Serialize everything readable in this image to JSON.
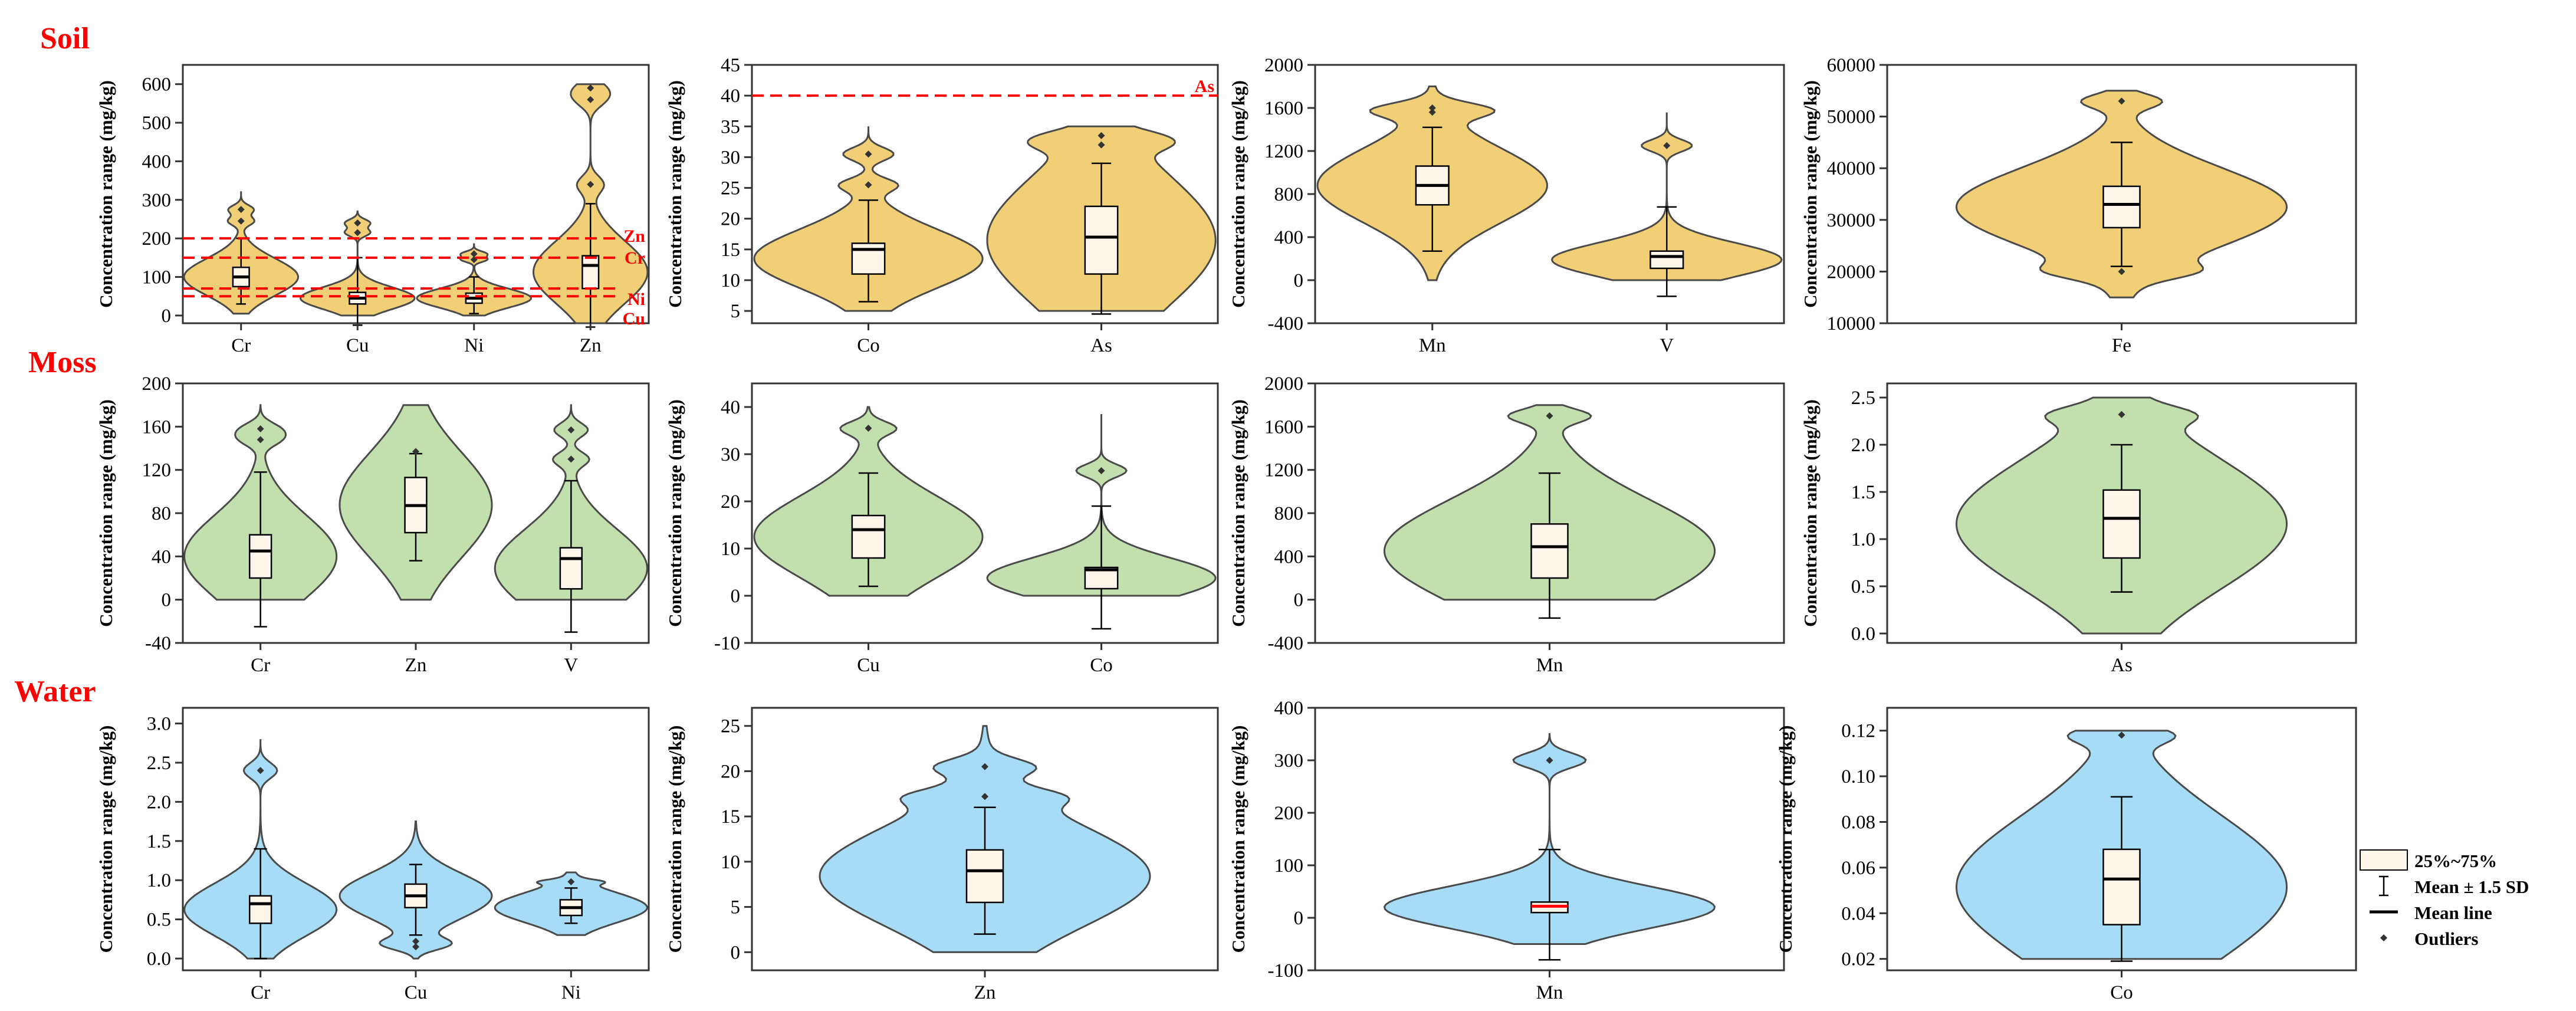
{
  "colors": {
    "Soil": "#f0cf77",
    "Moss": "#c2dfae",
    "Water": "#a6dcf5",
    "box": "#fdf6ea",
    "ref": "#ff0000",
    "frame": "#333333"
  },
  "rows": [
    {
      "label": "Soil",
      "key": "Soil"
    },
    {
      "label": "Moss",
      "key": "Moss"
    },
    {
      "label": "Water",
      "key": "Water"
    }
  ],
  "legend": [
    {
      "label": "25%~75%",
      "icon": "box-icon"
    },
    {
      "label": "Mean ± 1.5 SD",
      "icon": "whisker-icon"
    },
    {
      "label": "Mean line",
      "icon": "mean-line-icon"
    },
    {
      "label": "Outliers",
      "icon": "outlier-icon"
    }
  ],
  "chart_data": [
    {
      "type": "violin",
      "row": "Soil",
      "ylabel": "Concentration range (mg/kg)",
      "ylim": [
        -20,
        650
      ],
      "yticks": [
        0,
        100,
        200,
        300,
        400,
        500,
        600
      ],
      "categories": [
        "Cr",
        "Cu",
        "Ni",
        "Zn"
      ],
      "series": [
        {
          "name": "Cr",
          "min": 5,
          "max": 320,
          "q1": 75,
          "median": 95,
          "q3": 125,
          "whisker_low": 30,
          "whisker_high": 200,
          "mean": 100,
          "outliers": [
            245,
            275
          ]
        },
        {
          "name": "Cu",
          "min": 0,
          "max": 270,
          "q1": 30,
          "median": 42,
          "q3": 60,
          "whisker_low": -25,
          "whisker_high": 150,
          "mean": 45,
          "outliers": [
            215,
            240
          ]
        },
        {
          "name": "Ni",
          "min": 0,
          "max": 185,
          "q1": 32,
          "median": 45,
          "q3": 58,
          "whisker_low": 5,
          "whisker_high": 100,
          "mean": 45,
          "outliers": [
            145,
            160
          ]
        },
        {
          "name": "Zn",
          "min": -20,
          "max": 600,
          "q1": 70,
          "median": 110,
          "q3": 155,
          "whisker_low": -30,
          "whisker_high": 290,
          "mean": 130,
          "outliers": [
            340,
            560,
            590
          ]
        }
      ],
      "reference_lines": [
        {
          "label": "Zn",
          "value": 200
        },
        {
          "label": "Cr",
          "value": 150
        },
        {
          "label": "Ni",
          "value": 70
        },
        {
          "label": "Cu",
          "value": 50
        }
      ]
    },
    {
      "type": "violin",
      "row": "Soil",
      "ylabel": "Concentration range (mg/kg)",
      "ylim": [
        3,
        45
      ],
      "yticks": [
        5,
        10,
        15,
        20,
        25,
        30,
        35,
        40,
        45
      ],
      "categories": [
        "Co",
        "As"
      ],
      "series": [
        {
          "name": "Co",
          "min": 5,
          "max": 35,
          "q1": 11,
          "median": 14.5,
          "q3": 16,
          "whisker_low": 6.5,
          "whisker_high": 23,
          "mean": 15,
          "outliers": [
            25.5,
            30.5
          ]
        },
        {
          "name": "As",
          "min": 5,
          "max": 35,
          "q1": 11,
          "median": 16.5,
          "q3": 22,
          "whisker_low": 4.5,
          "whisker_high": 29,
          "mean": 17,
          "outliers": [
            32,
            33.5
          ]
        }
      ],
      "reference_lines": [
        {
          "label": "As",
          "value": 40
        }
      ]
    },
    {
      "type": "violin",
      "row": "Soil",
      "ylabel": "Concentration range (mg/kg)",
      "ylim": [
        -400,
        2000
      ],
      "yticks": [
        -400,
        0,
        400,
        800,
        1200,
        1600,
        2000
      ],
      "categories": [
        "Mn",
        "V"
      ],
      "series": [
        {
          "name": "Mn",
          "min": 0,
          "max": 1800,
          "q1": 700,
          "median": 860,
          "q3": 1060,
          "whisker_low": 270,
          "whisker_high": 1420,
          "mean": 880,
          "outliers": [
            1560,
            1600
          ]
        },
        {
          "name": "V",
          "min": 0,
          "max": 1550,
          "q1": 110,
          "median": 200,
          "q3": 270,
          "whisker_low": -150,
          "whisker_high": 680,
          "mean": 220,
          "outliers": [
            1250
          ]
        }
      ],
      "reference_lines": []
    },
    {
      "type": "violin",
      "row": "Soil",
      "ylabel": "Concentration range (mg/kg)",
      "ylim": [
        10000,
        60000
      ],
      "yticks": [
        10000,
        20000,
        30000,
        40000,
        50000,
        60000
      ],
      "categories": [
        "Fe"
      ],
      "series": [
        {
          "name": "Fe",
          "min": 15000,
          "max": 55000,
          "q1": 28500,
          "median": 33000,
          "q3": 36500,
          "whisker_low": 21000,
          "whisker_high": 45000,
          "mean": 33000,
          "outliers": [
            20000,
            53000
          ]
        }
      ],
      "reference_lines": []
    },
    {
      "type": "violin",
      "row": "Moss",
      "ylabel": "Concentration range (mg/kg)",
      "ylim": [
        -40,
        200
      ],
      "yticks": [
        -40,
        0,
        40,
        80,
        120,
        160,
        200
      ],
      "categories": [
        "Cr",
        "Zn",
        "V"
      ],
      "series": [
        {
          "name": "Cr",
          "min": 0,
          "max": 180,
          "q1": 20,
          "median": 45,
          "q3": 60,
          "whisker_low": -25,
          "whisker_high": 118,
          "mean": 45,
          "outliers": [
            148,
            158
          ]
        },
        {
          "name": "Zn",
          "min": 0,
          "max": 180,
          "q1": 62,
          "median": 85,
          "q3": 113,
          "whisker_low": 36,
          "whisker_high": 135,
          "mean": 87,
          "outliers": [
            137
          ]
        },
        {
          "name": "V",
          "min": 0,
          "max": 180,
          "q1": 10,
          "median": 38,
          "q3": 48,
          "whisker_low": -30,
          "whisker_high": 110,
          "mean": 38,
          "outliers": [
            130,
            157
          ]
        }
      ],
      "reference_lines": []
    },
    {
      "type": "violin",
      "row": "Moss",
      "ylabel": "Concentration range (mg/kg)",
      "ylim": [
        -10,
        45
      ],
      "yticks": [
        -10,
        0,
        10,
        20,
        30,
        40
      ],
      "categories": [
        "Cu",
        "Co"
      ],
      "series": [
        {
          "name": "Cu",
          "min": 0,
          "max": 40,
          "q1": 8,
          "median": 14,
          "q3": 17,
          "whisker_low": 2,
          "whisker_high": 26,
          "mean": 14,
          "outliers": [
            35.5
          ]
        },
        {
          "name": "Co",
          "min": 0,
          "max": 38.5,
          "q1": 1.5,
          "median": 4.5,
          "q3": 6,
          "whisker_low": -7,
          "whisker_high": 19,
          "mean": 5.5,
          "outliers": [
            26.5
          ]
        }
      ],
      "reference_lines": []
    },
    {
      "type": "violin",
      "row": "Moss",
      "ylabel": "Concentration range (mg/kg)",
      "ylim": [
        -400,
        2000
      ],
      "yticks": [
        -400,
        0,
        400,
        800,
        1200,
        1600,
        2000
      ],
      "categories": [
        "Mn"
      ],
      "series": [
        {
          "name": "Mn",
          "min": 0,
          "max": 1800,
          "q1": 200,
          "median": 490,
          "q3": 700,
          "whisker_low": -170,
          "whisker_high": 1170,
          "mean": 490,
          "outliers": [
            1700
          ]
        }
      ],
      "reference_lines": []
    },
    {
      "type": "violin",
      "row": "Moss",
      "ylabel": "Concentration range (mg/kg)",
      "ylim": [
        -0.1,
        2.65
      ],
      "yticks": [
        0.0,
        0.5,
        1.0,
        1.5,
        2.0,
        2.5
      ],
      "categories": [
        "As"
      ],
      "series": [
        {
          "name": "As",
          "min": 0,
          "max": 2.5,
          "q1": 0.8,
          "median": 1.22,
          "q3": 1.52,
          "whisker_low": 0.44,
          "whisker_high": 2.0,
          "mean": 1.22,
          "outliers": [
            2.32
          ]
        }
      ],
      "reference_lines": []
    },
    {
      "type": "violin",
      "row": "Water",
      "ylabel": "Concentration range (mg/kg)",
      "ylim": [
        -0.15,
        3.2
      ],
      "yticks": [
        0.0,
        0.5,
        1.0,
        1.5,
        2.0,
        2.5,
        3.0
      ],
      "categories": [
        "Cr",
        "Cu",
        "Ni"
      ],
      "series": [
        {
          "name": "Cr",
          "min": 0,
          "max": 2.8,
          "q1": 0.45,
          "median": 0.65,
          "q3": 0.8,
          "whisker_low": 0,
          "whisker_high": 1.4,
          "mean": 0.7,
          "outliers": [
            2.4
          ]
        },
        {
          "name": "Cu",
          "min": 0,
          "max": 1.75,
          "q1": 0.65,
          "median": 0.8,
          "q3": 0.95,
          "whisker_low": 0.3,
          "whisker_high": 1.2,
          "mean": 0.8,
          "outliers": [
            0.15,
            0.22
          ]
        },
        {
          "name": "Ni",
          "min": 0.3,
          "max": 1.1,
          "q1": 0.55,
          "median": 0.65,
          "q3": 0.75,
          "whisker_low": 0.45,
          "whisker_high": 0.9,
          "mean": 0.65,
          "outliers": [
            0.98
          ]
        }
      ],
      "reference_lines": []
    },
    {
      "type": "violin",
      "row": "Water",
      "ylabel": "Concentration range (mg/kg)",
      "ylim": [
        -2,
        27
      ],
      "yticks": [
        0,
        5,
        10,
        15,
        20,
        25
      ],
      "categories": [
        "Zn"
      ],
      "series": [
        {
          "name": "Zn",
          "min": 0,
          "max": 25,
          "q1": 5.5,
          "median": 9,
          "q3": 11.3,
          "whisker_low": 2,
          "whisker_high": 16,
          "mean": 9,
          "outliers": [
            17.2,
            20.5
          ]
        }
      ],
      "reference_lines": []
    },
    {
      "type": "violin",
      "row": "Water",
      "ylabel": "Concentration range (mg/kg)",
      "ylim": [
        -100,
        400
      ],
      "yticks": [
        -100,
        0,
        100,
        200,
        300,
        400
      ],
      "categories": [
        "Mn"
      ],
      "series": [
        {
          "name": "Mn",
          "min": -50,
          "max": 350,
          "q1": 10,
          "median": 22,
          "q3": 30,
          "whisker_low": -80,
          "whisker_high": 130,
          "mean": 22,
          "outliers": [
            300
          ],
          "mean_color": "#ff0000"
        }
      ],
      "reference_lines": []
    },
    {
      "type": "violin",
      "row": "Water",
      "ylabel": "Concentration range (mg/kg)",
      "ylim": [
        0.015,
        0.13
      ],
      "yticks": [
        0.02,
        0.04,
        0.06,
        0.08,
        0.1,
        0.12
      ],
      "categories": [
        "Co"
      ],
      "series": [
        {
          "name": "Co",
          "min": 0.02,
          "max": 0.12,
          "q1": 0.035,
          "median": 0.055,
          "q3": 0.068,
          "whisker_low": 0.019,
          "whisker_high": 0.091,
          "mean": 0.055,
          "outliers": [
            0.118
          ]
        }
      ],
      "reference_lines": []
    }
  ]
}
